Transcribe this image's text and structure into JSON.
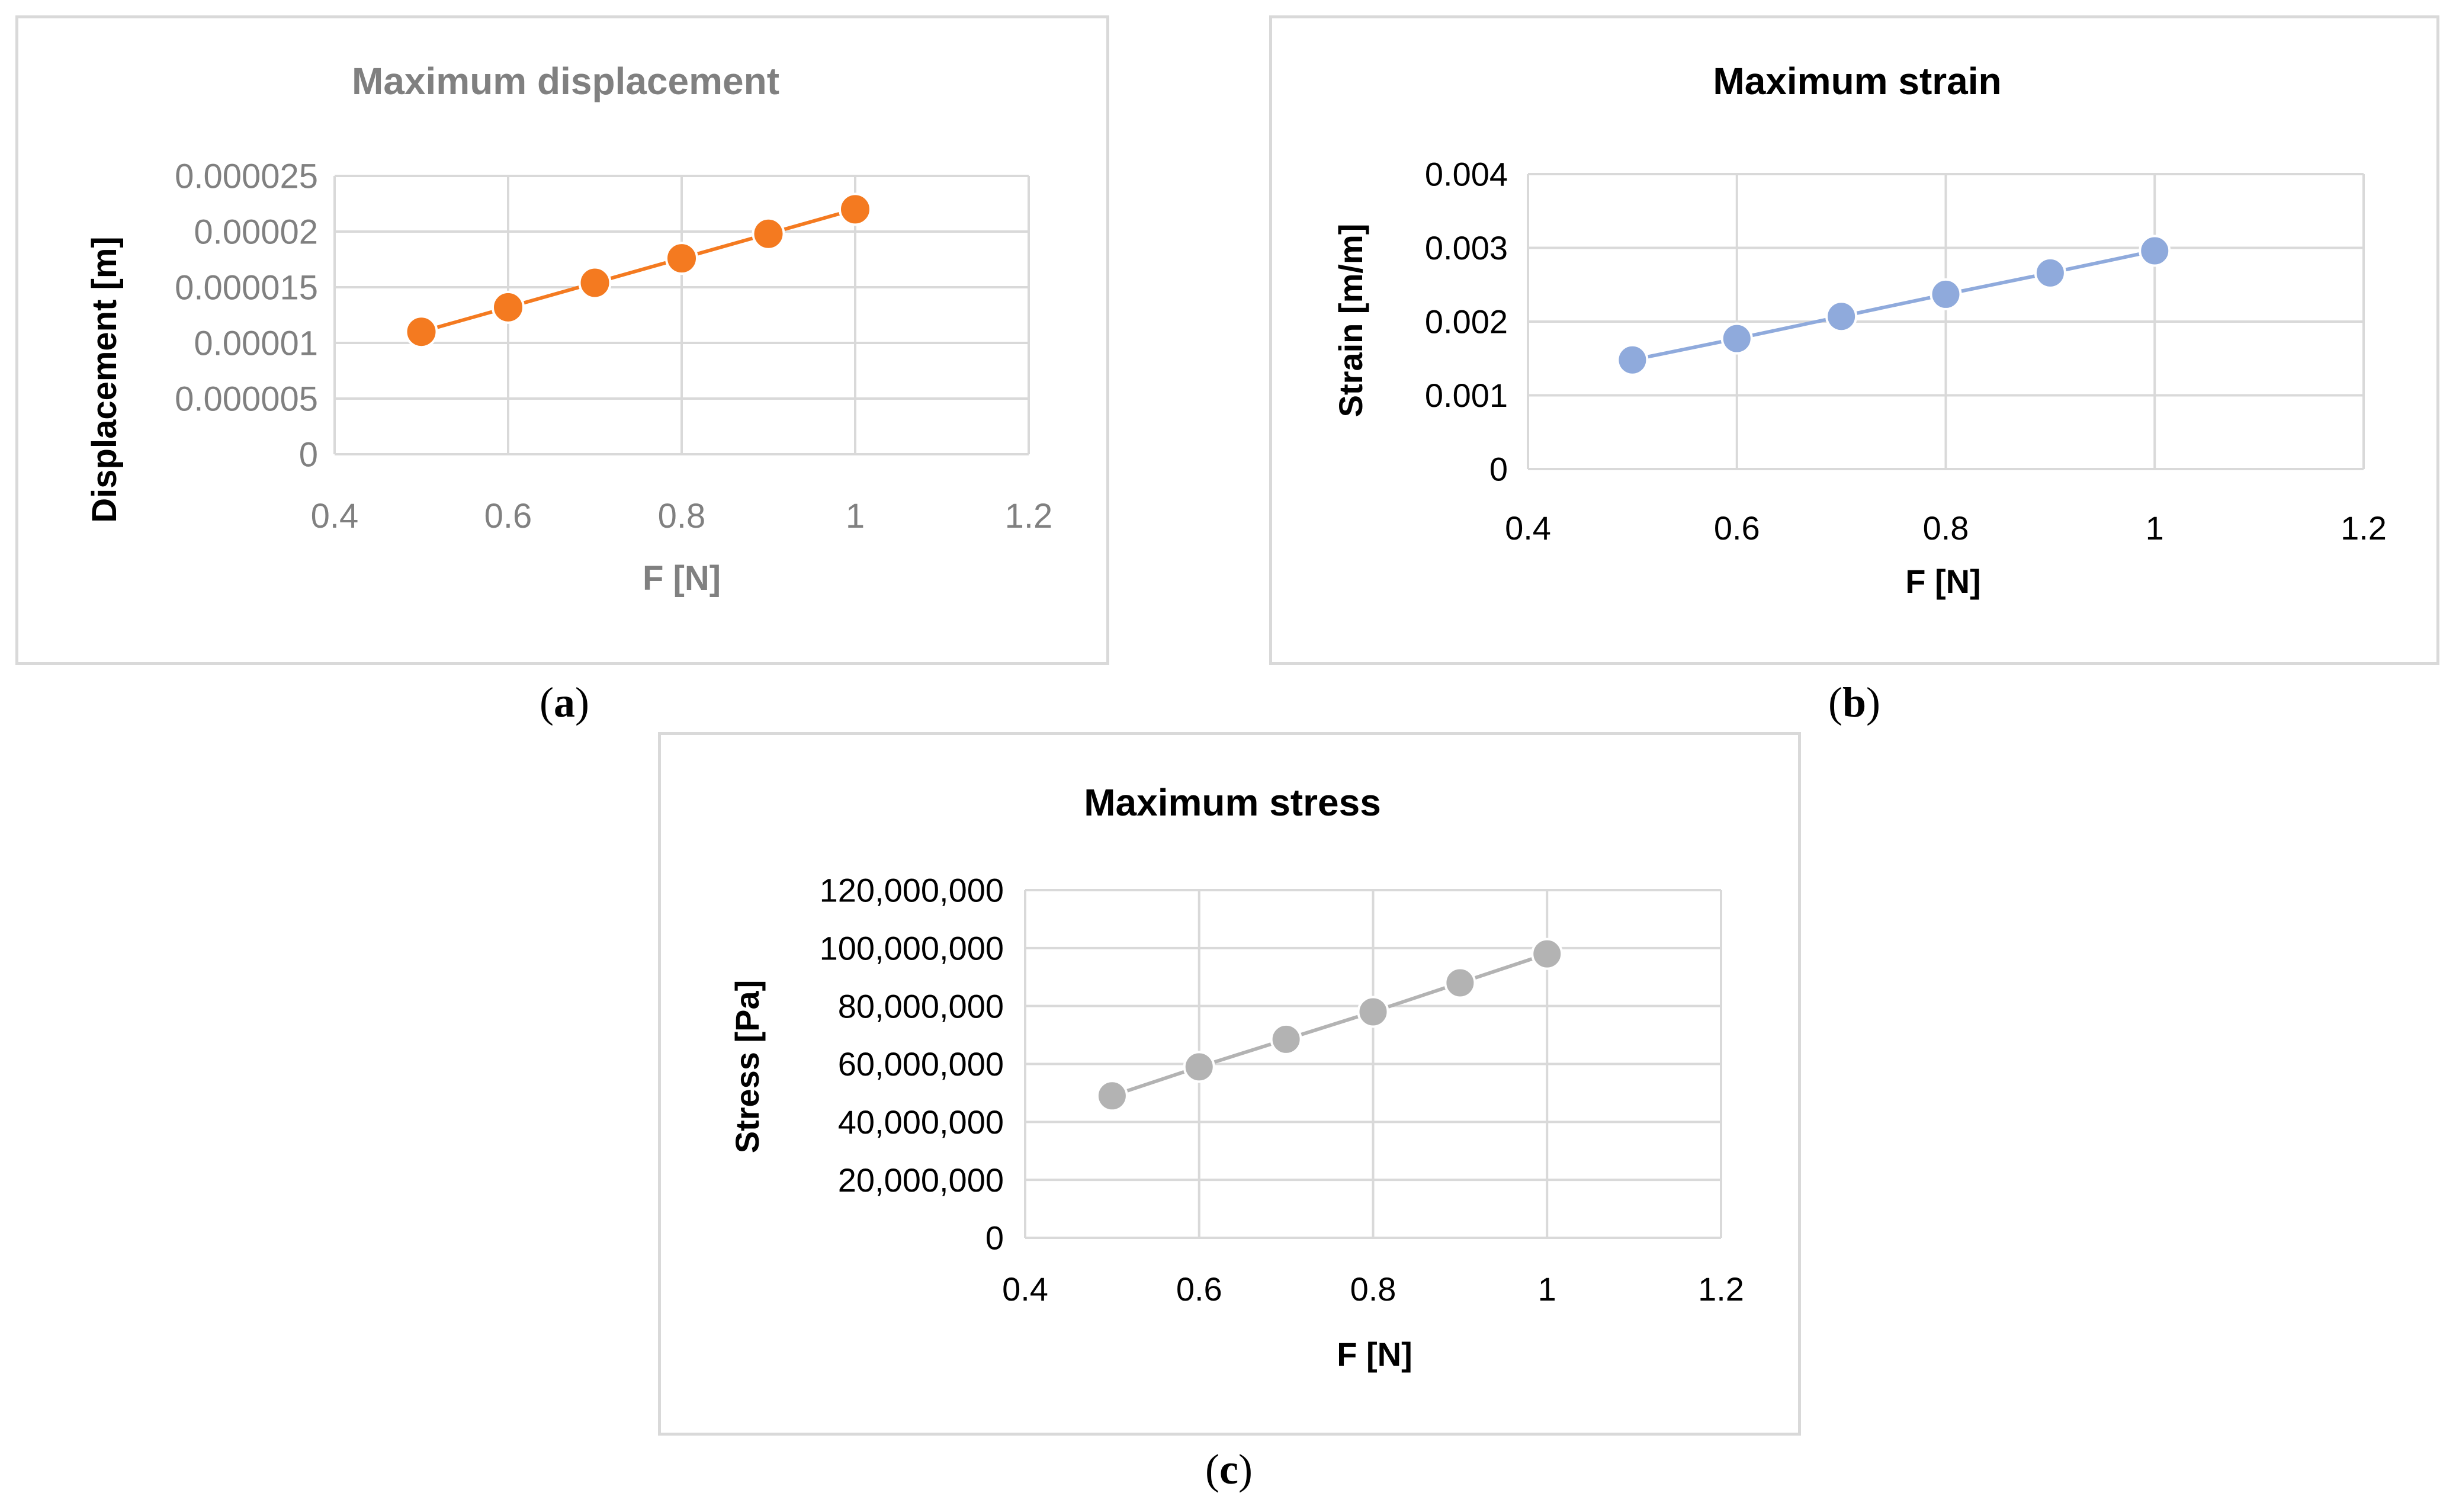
{
  "chart_data": [
    {
      "id": "a",
      "type": "scatter",
      "title": "Maximum displacement",
      "xlabel": "F [N]",
      "ylabel": "Displacement [m]",
      "x": [
        0.5,
        0.6,
        0.7,
        0.8,
        0.9,
        1.0
      ],
      "y": [
        1.1e-05,
        1.32e-05,
        1.54e-05,
        1.76e-05,
        1.98e-05,
        2.2e-05
      ],
      "xlim": [
        0.4,
        1.2
      ],
      "ylim": [
        0,
        2.5e-05
      ],
      "xticks": [
        "0.4",
        "0.6",
        "0.8",
        "1",
        "1.2"
      ],
      "yticks": [
        "0",
        "0.000005",
        "0.00001",
        "0.000015",
        "0.00002",
        "0.000025"
      ],
      "grid": true,
      "color": "#f47a20",
      "title_color": "#808080",
      "tick_color": "#808080",
      "caption": "a"
    },
    {
      "id": "b",
      "type": "scatter",
      "title": "Maximum strain",
      "xlabel": "F [N]",
      "ylabel": "Strain [m/m]",
      "x": [
        0.5,
        0.6,
        0.7,
        0.8,
        0.9,
        1.0
      ],
      "y": [
        0.00148,
        0.00177,
        0.00207,
        0.00237,
        0.00266,
        0.00296
      ],
      "xlim": [
        0.4,
        1.2
      ],
      "ylim": [
        0,
        0.004
      ],
      "xticks": [
        "0.4",
        "0.6",
        "0.8",
        "1",
        "1.2"
      ],
      "yticks": [
        "0",
        "0.001",
        "0.002",
        "0.003",
        "0.004"
      ],
      "grid": true,
      "color": "#8faadc",
      "title_color": "#000000",
      "tick_color": "#000000",
      "caption": "b"
    },
    {
      "id": "c",
      "type": "scatter",
      "title": "Maximum stress",
      "xlabel": "F [N]",
      "ylabel": "Stress [Pa]",
      "x": [
        0.5,
        0.6,
        0.7,
        0.8,
        0.9,
        1.0
      ],
      "y": [
        49000000,
        59000000,
        68500000,
        78000000,
        88000000,
        98000000
      ],
      "xlim": [
        0.4,
        1.2
      ],
      "ylim": [
        0,
        120000000
      ],
      "xticks": [
        "0.4",
        "0.6",
        "0.8",
        "1",
        "1.2"
      ],
      "yticks": [
        "0",
        "20,000,000",
        "40,000,000",
        "60,000,000",
        "80,000,000",
        "100,000,000",
        "120,000,000"
      ],
      "grid": true,
      "color": "#b3b3b3",
      "title_color": "#000000",
      "tick_color": "#000000",
      "caption": "c"
    }
  ]
}
